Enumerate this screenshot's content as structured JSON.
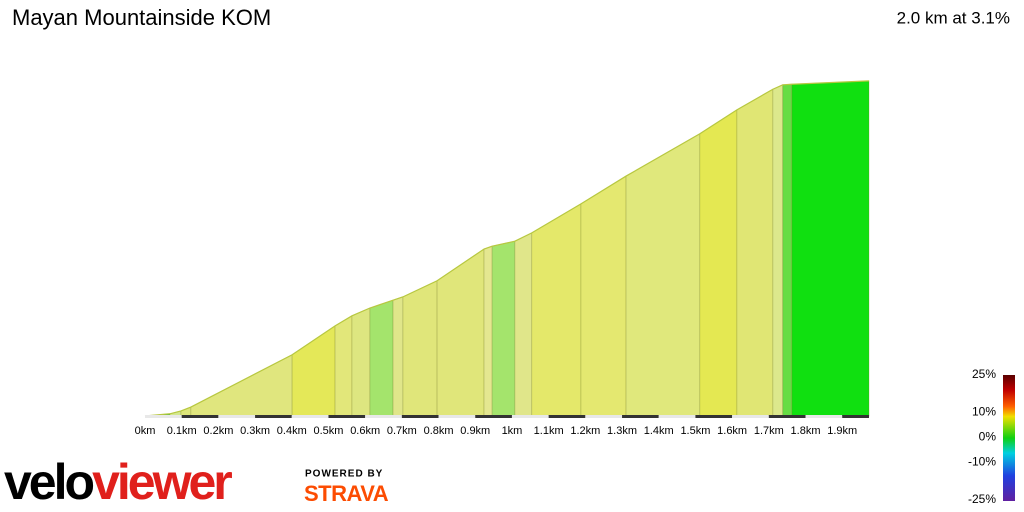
{
  "chart_data": {
    "type": "area",
    "title": "Mayan Mountainside KOM",
    "subtitle": "2.0 km at 3.1%",
    "x": [
      0,
      0.068,
      0.098,
      0.125,
      0.401,
      0.518,
      0.564,
      0.613,
      0.676,
      0.703,
      0.796,
      0.924,
      0.946,
      1.008,
      1.054,
      1.188,
      1.311,
      1.512,
      1.613,
      1.711,
      1.738,
      1.763,
      1.973
    ],
    "values": [
      0,
      0.4,
      0.9,
      1.6,
      11.0,
      16.2,
      18.0,
      19.4,
      20.8,
      21.4,
      24.3,
      30.0,
      30.5,
      31.4,
      32.9,
      38.1,
      43.1,
      50.7,
      55.0,
      58.7,
      59.5,
      59.6,
      60.2
    ],
    "segment_colors": [
      "#44c044",
      "#d4e890",
      "#dde67a",
      "#e0e67e",
      "#e4e858",
      "#e2e77a",
      "#dde680",
      "#a4e46c",
      "#e0e68a",
      "#e0e67a",
      "#e0e67a",
      "#e4e790",
      "#a4e46c",
      "#e0e68a",
      "#e4e86a",
      "#e4e870",
      "#e0e87c",
      "#e4e852",
      "#e0e674",
      "#dce88c",
      "#66dd44",
      "#10e010"
    ],
    "line_color": "#b8c840",
    "xlim": [
      0,
      1.973
    ],
    "ylim": [
      0,
      60
    ],
    "xticks": [
      {
        "value": 0,
        "label": "0km"
      },
      {
        "value": 0.1,
        "label": "0.1km"
      },
      {
        "value": 0.2,
        "label": "0.2km"
      },
      {
        "value": 0.3,
        "label": "0.3km"
      },
      {
        "value": 0.4,
        "label": "0.4km"
      },
      {
        "value": 0.5,
        "label": "0.5km"
      },
      {
        "value": 0.6,
        "label": "0.6km"
      },
      {
        "value": 0.7,
        "label": "0.7km"
      },
      {
        "value": 0.8,
        "label": "0.8km"
      },
      {
        "value": 0.9,
        "label": "0.9km"
      },
      {
        "value": 1,
        "label": "1km"
      },
      {
        "value": 1.1,
        "label": "1.1km"
      },
      {
        "value": 1.2,
        "label": "1.2km"
      },
      {
        "value": 1.3,
        "label": "1.3km"
      },
      {
        "value": 1.4,
        "label": "1.4km"
      },
      {
        "value": 1.5,
        "label": "1.5km"
      },
      {
        "value": 1.6,
        "label": "1.6km"
      },
      {
        "value": 1.7,
        "label": "1.7km"
      },
      {
        "value": 1.8,
        "label": "1.8km"
      },
      {
        "value": 1.9,
        "label": "1.9km"
      }
    ],
    "color_scale": {
      "ticks": [
        {
          "value": 25,
          "label": "25%"
        },
        {
          "value": 10,
          "label": "10%"
        },
        {
          "value": 0,
          "label": "0%"
        },
        {
          "value": -10,
          "label": "-10%"
        },
        {
          "value": -25,
          "label": "-25%"
        }
      ]
    }
  },
  "branding": {
    "logo_velo": "velo",
    "logo_viewer": "viewer",
    "powered_by": "POWERED BY",
    "strava": "STRAVA"
  }
}
